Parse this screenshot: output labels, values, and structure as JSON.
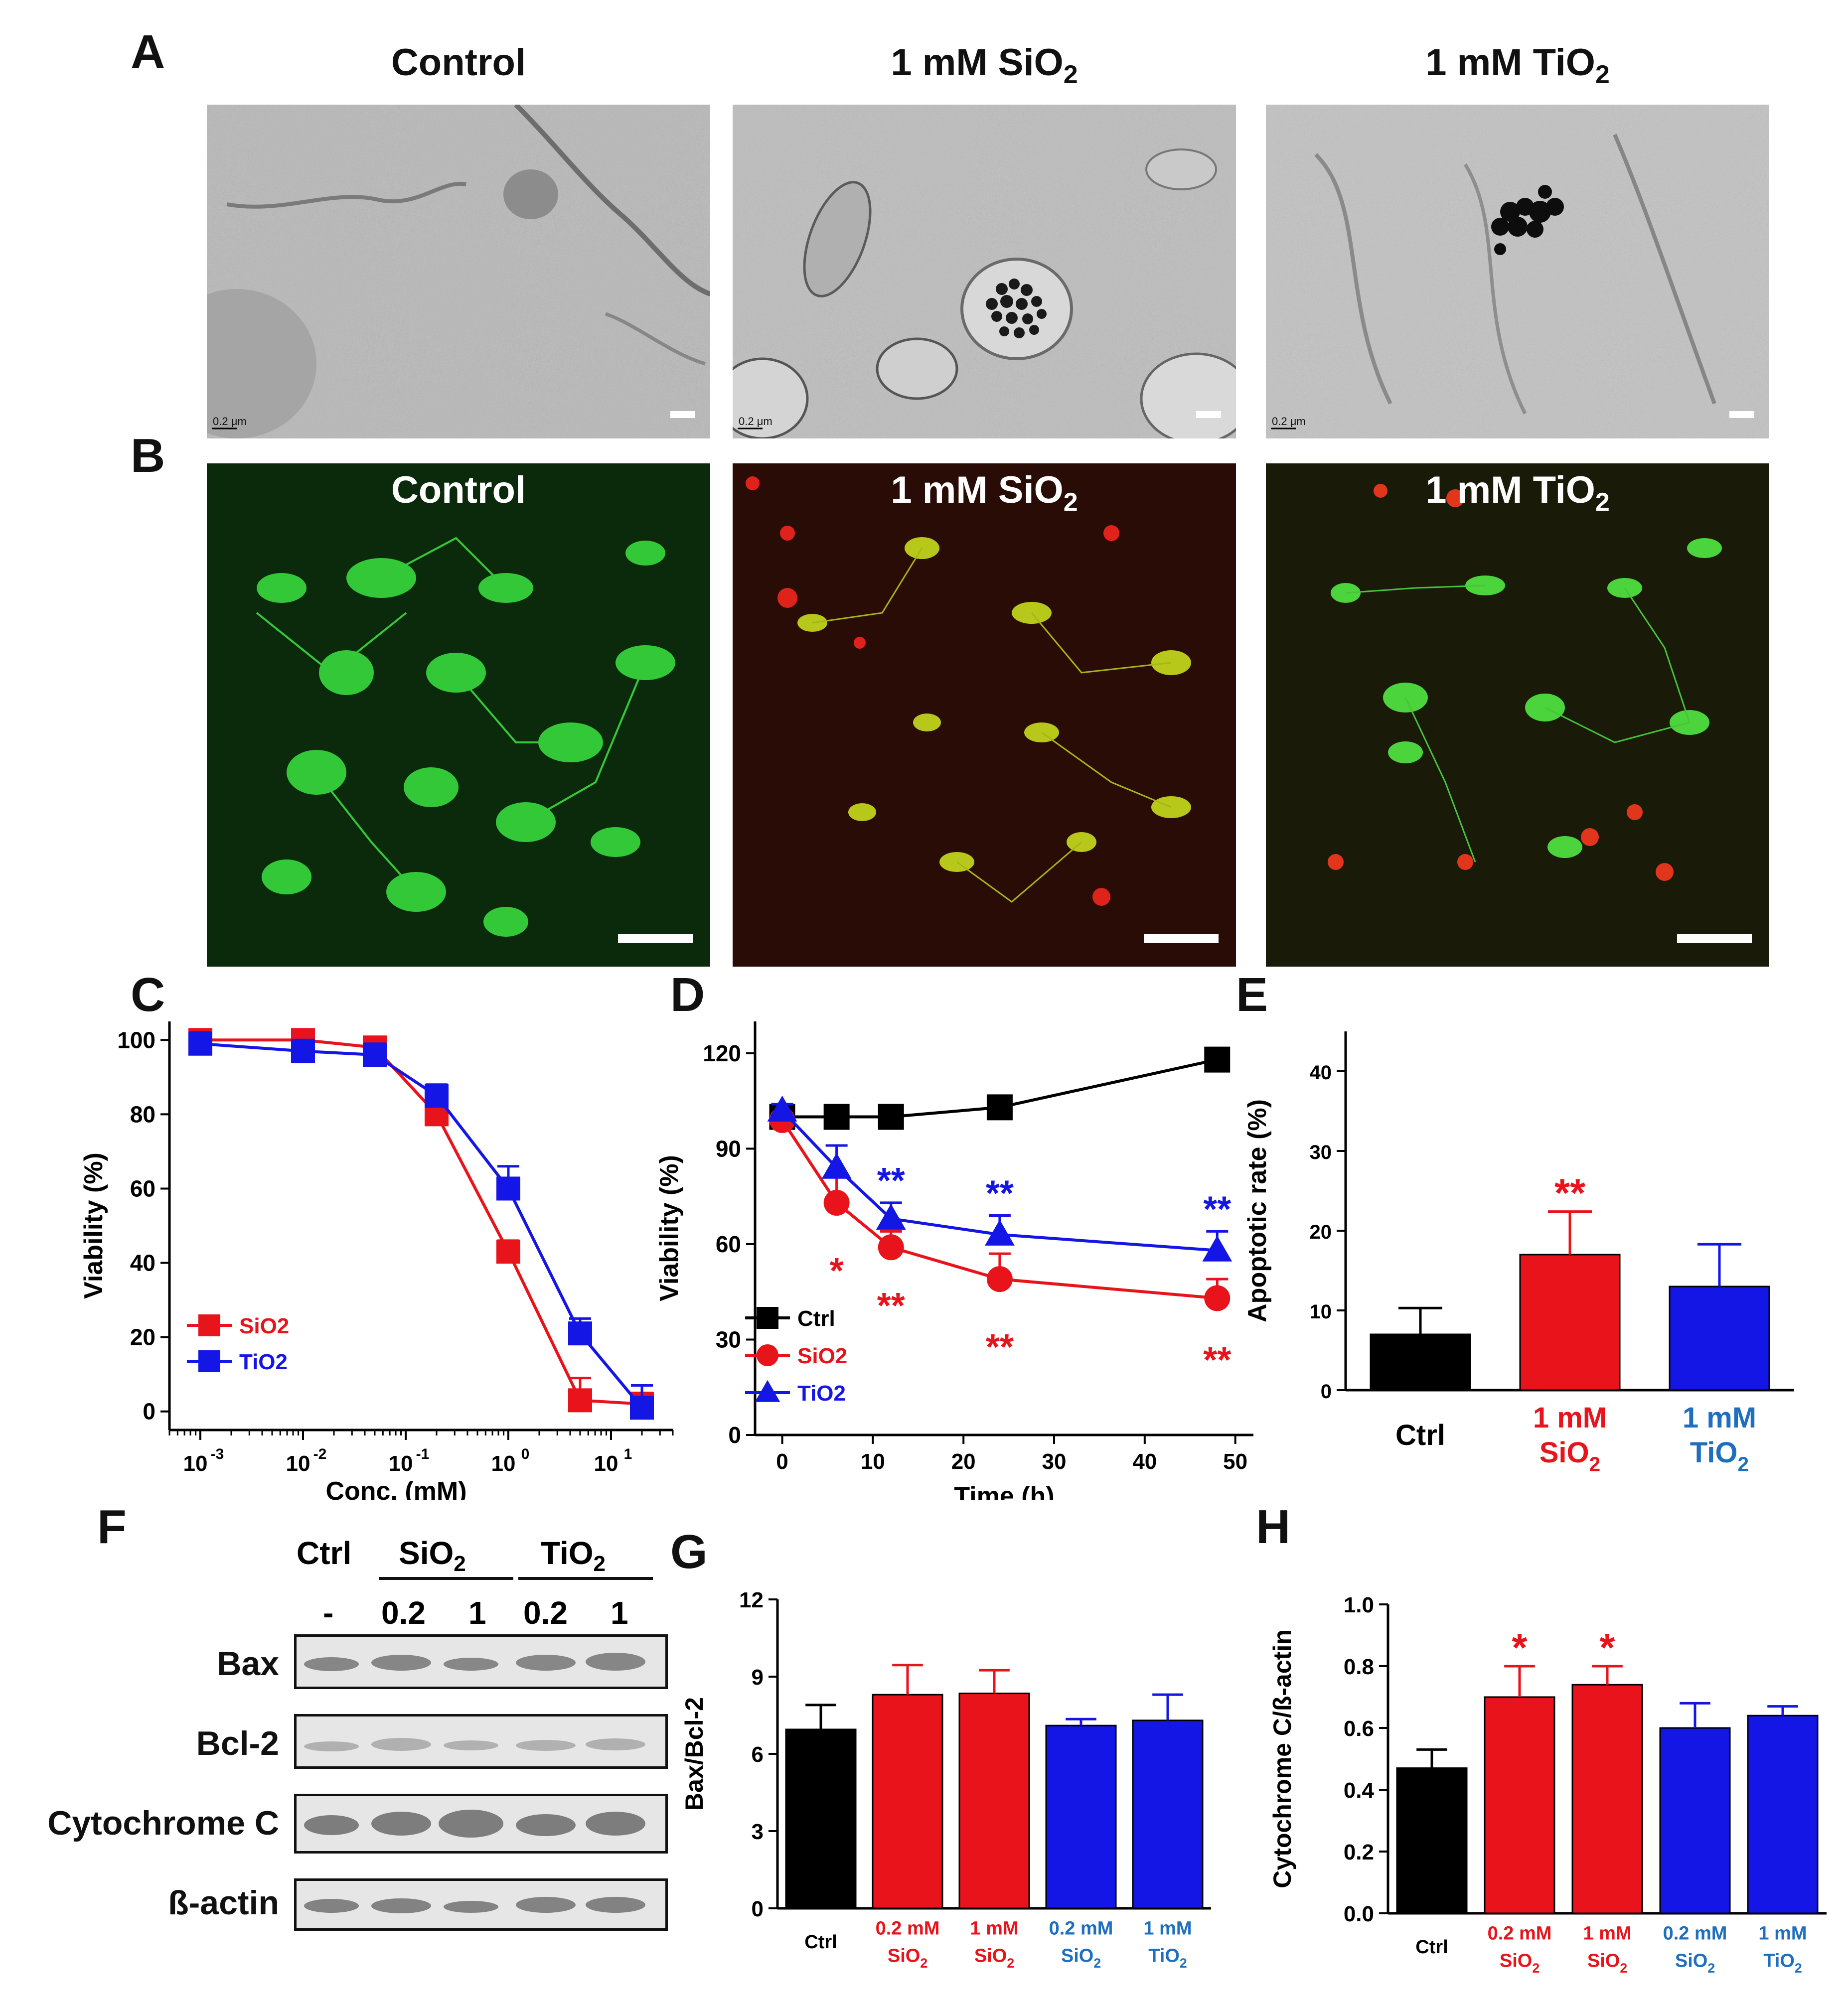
{
  "panels": {
    "A": "A",
    "B": "B",
    "C": "C",
    "D": "D",
    "E": "E",
    "F": "F",
    "G": "G",
    "H": "H"
  },
  "panelA": {
    "titles": {
      "control": "Control",
      "sio2_prefix": "1 mM SiO",
      "tio2_prefix": "1 mM TiO",
      "sub": "2"
    },
    "scale_text": "0.2 μm"
  },
  "panelB": {
    "titles": {
      "control": "Control",
      "sio2_prefix": "1 mM SiO",
      "tio2_prefix": "1 mM TiO",
      "sub": "2"
    }
  },
  "colors": {
    "ctrl": "#000000",
    "sio2": "#e8131b",
    "tio2": "#1416e6",
    "label_blue": "#1f6fbf"
  },
  "chart_data": [
    {
      "id": "C",
      "type": "line",
      "xlabel": "Conc. (mM)",
      "ylabel": "Viability (%)",
      "x_scale": "log",
      "xlim": [
        0.0005,
        40
      ],
      "ylim": [
        -5,
        105
      ],
      "yticks": [
        0,
        20,
        40,
        60,
        80,
        100
      ],
      "xticks": [
        "10-3",
        "10-2",
        "10-1",
        "100",
        "101"
      ],
      "legend": [
        "SiO2",
        "TiO2"
      ],
      "legend_position": "bottom-left",
      "series": [
        {
          "name": "SiO2",
          "x": [
            0.001,
            0.01,
            0.05,
            0.2,
            1,
            5,
            20
          ],
          "y": [
            100,
            100,
            98,
            80,
            43,
            3,
            2
          ],
          "err": [
            2,
            2,
            2,
            3,
            3,
            6,
            3
          ]
        },
        {
          "name": "TiO2",
          "x": [
            0.001,
            0.01,
            0.05,
            0.2,
            1,
            5,
            20
          ],
          "y": [
            99,
            97,
            96,
            85,
            60,
            21,
            1
          ],
          "err": [
            3,
            3,
            3,
            3,
            6,
            4,
            6
          ]
        }
      ]
    },
    {
      "id": "D",
      "type": "line",
      "xlabel": "Time (h)",
      "ylabel": "Viability (%)",
      "xlim": [
        -3,
        52
      ],
      "ylim": [
        0,
        130
      ],
      "yticks": [
        0,
        30,
        60,
        90,
        120
      ],
      "xticks": [
        0,
        10,
        20,
        30,
        40,
        50
      ],
      "legend": [
        "Ctrl",
        "SiO2",
        "TiO2"
      ],
      "legend_position": "bottom-left",
      "series": [
        {
          "name": "Ctrl",
          "x": [
            0,
            6,
            12,
            24,
            48
          ],
          "y": [
            100,
            100,
            100,
            103,
            118
          ],
          "err": [
            3,
            3,
            3,
            3,
            3
          ]
        },
        {
          "name": "SiO2",
          "x": [
            0,
            6,
            12,
            24,
            48
          ],
          "y": [
            99,
            73,
            59,
            49,
            43
          ],
          "err": [
            2,
            8,
            5,
            8,
            6
          ]
        },
        {
          "name": "TiO2",
          "x": [
            0,
            6,
            12,
            24,
            48
          ],
          "y": [
            102,
            84,
            68,
            63,
            58
          ],
          "err": [
            2,
            7,
            5,
            6,
            6
          ]
        }
      ],
      "annotations": [
        {
          "x": 6,
          "series": "SiO2",
          "text": "*"
        },
        {
          "x": 12,
          "series": "SiO2",
          "text": "**"
        },
        {
          "x": 24,
          "series": "SiO2",
          "text": "**"
        },
        {
          "x": 48,
          "series": "SiO2",
          "text": "**"
        },
        {
          "x": 12,
          "series": "TiO2",
          "text": "**"
        },
        {
          "x": 24,
          "series": "TiO2",
          "text": "**"
        },
        {
          "x": 48,
          "series": "TiO2",
          "text": "**"
        }
      ]
    },
    {
      "id": "E",
      "type": "bar",
      "ylabel": "Apoptotic rate (%)",
      "ylim": [
        0,
        45
      ],
      "yticks": [
        0,
        10,
        20,
        30,
        40
      ],
      "categories": [
        "Ctrl",
        "1 mM SiO2",
        "1 mM TiO2"
      ],
      "values": [
        7,
        17,
        13
      ],
      "err": [
        3.3,
        5.4,
        5.3
      ],
      "annotations": [
        {
          "category": "1 mM SiO2",
          "text": "**"
        }
      ]
    },
    {
      "id": "G",
      "type": "bar",
      "ylabel": "Bax/Bcl-2",
      "ylim": [
        0,
        12
      ],
      "yticks": [
        0,
        3,
        6,
        9,
        12
      ],
      "categories": [
        "Ctrl",
        "0.2 mM SiO2",
        "1 mM SiO2",
        "0.2 mM SiO2",
        "1 mM TiO2"
      ],
      "values": [
        6.95,
        8.3,
        8.35,
        7.1,
        7.3
      ],
      "err": [
        0.95,
        1.15,
        0.9,
        0.25,
        1.0
      ]
    },
    {
      "id": "H",
      "type": "bar",
      "ylabel": "Cytochrome C/ß-actin",
      "ylim": [
        0,
        1.0
      ],
      "yticks": [
        0.0,
        0.2,
        0.4,
        0.6,
        0.8,
        1.0
      ],
      "categories": [
        "Ctrl",
        "0.2 mM SiO2",
        "1 mM SiO2",
        "0.2 mM SiO2",
        "1 mM TiO2"
      ],
      "values": [
        0.47,
        0.7,
        0.74,
        0.6,
        0.64
      ],
      "err": [
        0.06,
        0.1,
        0.06,
        0.08,
        0.03
      ],
      "annotations": [
        {
          "category": 1,
          "text": "*"
        },
        {
          "category": 2,
          "text": "*"
        }
      ]
    }
  ],
  "tick_labels": {
    "C_x": [
      {
        "base": "10",
        "exp": "-3"
      },
      {
        "base": "10",
        "exp": "-2"
      },
      {
        "base": "10",
        "exp": "-1"
      },
      {
        "base": "10",
        "exp": "0"
      },
      {
        "base": "10",
        "exp": "1"
      }
    ]
  },
  "bar_labels": {
    "E": [
      {
        "l1": "Ctrl",
        "l2": "",
        "sub": ""
      },
      {
        "l1": "1 mM",
        "l2": "SiO",
        "sub": "2"
      },
      {
        "l1": "1 mM",
        "l2": "TiO",
        "sub": "2"
      }
    ],
    "GH": [
      {
        "l1": "Ctrl",
        "l2": "",
        "sub": ""
      },
      {
        "l1": "0.2 mM",
        "l2": "SiO",
        "sub": "2"
      },
      {
        "l1": "1 mM",
        "l2": "SiO",
        "sub": "2"
      },
      {
        "l1": "0.2 mM",
        "l2": "SiO",
        "sub": "2"
      },
      {
        "l1": "1 mM",
        "l2": "TiO",
        "sub": "2"
      }
    ]
  },
  "panelF": {
    "header": {
      "ctrl": "Ctrl",
      "sio2": "SiO",
      "tio2": "TiO",
      "sub": "2"
    },
    "doses": [
      "-",
      "0.2",
      "1",
      "0.2",
      "1"
    ],
    "rows": [
      "Bax",
      "Bcl-2",
      "Cytochrome C",
      "ß-actin"
    ]
  }
}
